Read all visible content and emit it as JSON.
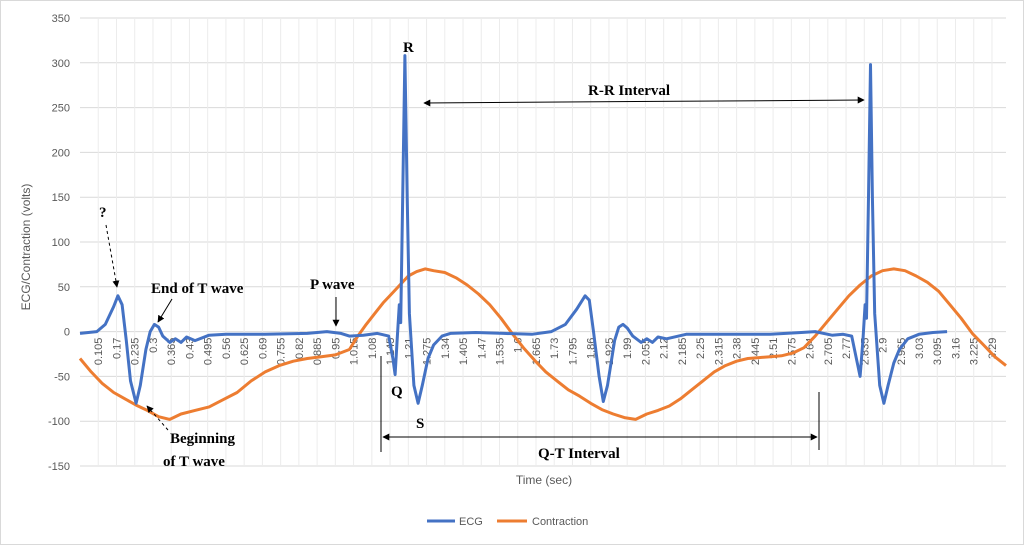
{
  "chart_data": {
    "type": "line",
    "title": "",
    "xlabel": "Time (sec)",
    "ylabel": "ECG/Contraction (volts)",
    "ylim": [
      -150,
      350
    ],
    "xlim": [
      0.04,
      3.34
    ],
    "y_ticks": [
      -150,
      -100,
      -50,
      0,
      50,
      100,
      150,
      200,
      250,
      300,
      350
    ],
    "x_tick_labels": [
      "0.105",
      "0.17",
      "0.235",
      "0.3",
      "0.365",
      "0.43",
      "0.495",
      "0.56",
      "0.625",
      "0.69",
      "0.755",
      "0.82",
      "0.885",
      "0.95",
      "1.015",
      "1.08",
      "1.145",
      "1.21",
      "1.275",
      "1.34",
      "1.405",
      "1.47",
      "1.535",
      "1.6",
      "1.665",
      "1.73",
      "1.795",
      "1.86",
      "1.925",
      "1.99",
      "2.055",
      "2.12",
      "2.185",
      "2.25",
      "2.315",
      "2.38",
      "2.445",
      "2.51",
      "2.575",
      "2.64",
      "2.705",
      "2.77",
      "2.835",
      "2.9",
      "2.965",
      "3.03",
      "3.095",
      "3.16",
      "3.225",
      "3.29"
    ],
    "grid": true,
    "legend_position": "bottom",
    "colors": {
      "ecg": "#4472C4",
      "contraction": "#ED7D31"
    },
    "series": [
      {
        "name": "ECG",
        "points": [
          [
            0.04,
            -2
          ],
          [
            0.1,
            0
          ],
          [
            0.13,
            8
          ],
          [
            0.16,
            28
          ],
          [
            0.175,
            40
          ],
          [
            0.19,
            30
          ],
          [
            0.205,
            -10
          ],
          [
            0.22,
            -55
          ],
          [
            0.24,
            -80
          ],
          [
            0.255,
            -60
          ],
          [
            0.275,
            -20
          ],
          [
            0.29,
            0
          ],
          [
            0.305,
            8
          ],
          [
            0.32,
            5
          ],
          [
            0.335,
            -5
          ],
          [
            0.36,
            -12
          ],
          [
            0.38,
            -8
          ],
          [
            0.4,
            -12
          ],
          [
            0.42,
            -6
          ],
          [
            0.45,
            -10
          ],
          [
            0.5,
            -4
          ],
          [
            0.56,
            -3
          ],
          [
            0.7,
            -3
          ],
          [
            0.85,
            -2
          ],
          [
            0.92,
            0
          ],
          [
            0.97,
            -2
          ],
          [
            1.0,
            -5
          ],
          [
            1.05,
            -4
          ],
          [
            1.1,
            -2
          ],
          [
            1.14,
            -5
          ],
          [
            1.155,
            -30
          ],
          [
            1.163,
            -48
          ],
          [
            1.17,
            -10
          ],
          [
            1.178,
            30
          ],
          [
            1.183,
            10
          ],
          [
            1.19,
            150
          ],
          [
            1.198,
            308
          ],
          [
            1.206,
            150
          ],
          [
            1.214,
            20
          ],
          [
            1.23,
            -60
          ],
          [
            1.245,
            -80
          ],
          [
            1.26,
            -60
          ],
          [
            1.28,
            -30
          ],
          [
            1.3,
            -15
          ],
          [
            1.33,
            -5
          ],
          [
            1.36,
            -2
          ],
          [
            1.45,
            -1
          ],
          [
            1.55,
            -2
          ],
          [
            1.65,
            -3
          ],
          [
            1.72,
            0
          ],
          [
            1.77,
            8
          ],
          [
            1.81,
            25
          ],
          [
            1.84,
            40
          ],
          [
            1.855,
            35
          ],
          [
            1.87,
            0
          ],
          [
            1.89,
            -50
          ],
          [
            1.905,
            -78
          ],
          [
            1.92,
            -60
          ],
          [
            1.945,
            -10
          ],
          [
            1.96,
            5
          ],
          [
            1.975,
            8
          ],
          [
            1.99,
            4
          ],
          [
            2.01,
            -5
          ],
          [
            2.04,
            -12
          ],
          [
            2.06,
            -8
          ],
          [
            2.08,
            -12
          ],
          [
            2.1,
            -6
          ],
          [
            2.13,
            -8
          ],
          [
            2.2,
            -3
          ],
          [
            2.35,
            -3
          ],
          [
            2.5,
            -3
          ],
          [
            2.61,
            -1
          ],
          [
            2.66,
            0
          ],
          [
            2.72,
            -4
          ],
          [
            2.76,
            -3
          ],
          [
            2.79,
            -5
          ],
          [
            2.81,
            -35
          ],
          [
            2.82,
            -50
          ],
          [
            2.83,
            -10
          ],
          [
            2.838,
            30
          ],
          [
            2.843,
            15
          ],
          [
            2.85,
            150
          ],
          [
            2.857,
            298
          ],
          [
            2.864,
            150
          ],
          [
            2.872,
            20
          ],
          [
            2.89,
            -60
          ],
          [
            2.905,
            -80
          ],
          [
            2.92,
            -60
          ],
          [
            2.94,
            -35
          ],
          [
            2.96,
            -20
          ],
          [
            2.99,
            -8
          ],
          [
            3.03,
            -3
          ],
          [
            3.08,
            -1
          ],
          [
            3.13,
            0
          ]
        ]
      },
      {
        "name": "Contraction",
        "points": [
          [
            0.04,
            -30
          ],
          [
            0.08,
            -45
          ],
          [
            0.12,
            -58
          ],
          [
            0.16,
            -68
          ],
          [
            0.2,
            -75
          ],
          [
            0.24,
            -82
          ],
          [
            0.28,
            -88
          ],
          [
            0.32,
            -95
          ],
          [
            0.36,
            -98
          ],
          [
            0.4,
            -92
          ],
          [
            0.45,
            -88
          ],
          [
            0.5,
            -84
          ],
          [
            0.55,
            -76
          ],
          [
            0.6,
            -68
          ],
          [
            0.65,
            -55
          ],
          [
            0.7,
            -45
          ],
          [
            0.75,
            -38
          ],
          [
            0.8,
            -33
          ],
          [
            0.85,
            -30
          ],
          [
            0.9,
            -28
          ],
          [
            0.95,
            -26
          ],
          [
            1.0,
            -20
          ],
          [
            1.03,
            -5
          ],
          [
            1.06,
            8
          ],
          [
            1.09,
            20
          ],
          [
            1.12,
            32
          ],
          [
            1.15,
            42
          ],
          [
            1.18,
            52
          ],
          [
            1.21,
            62
          ],
          [
            1.24,
            67
          ],
          [
            1.27,
            70
          ],
          [
            1.3,
            68
          ],
          [
            1.34,
            66
          ],
          [
            1.38,
            60
          ],
          [
            1.42,
            52
          ],
          [
            1.46,
            42
          ],
          [
            1.5,
            30
          ],
          [
            1.54,
            15
          ],
          [
            1.58,
            -2
          ],
          [
            1.62,
            -18
          ],
          [
            1.66,
            -32
          ],
          [
            1.7,
            -45
          ],
          [
            1.74,
            -55
          ],
          [
            1.78,
            -65
          ],
          [
            1.82,
            -72
          ],
          [
            1.86,
            -80
          ],
          [
            1.9,
            -87
          ],
          [
            1.94,
            -92
          ],
          [
            1.98,
            -96
          ],
          [
            2.02,
            -98
          ],
          [
            2.06,
            -92
          ],
          [
            2.1,
            -88
          ],
          [
            2.14,
            -83
          ],
          [
            2.18,
            -75
          ],
          [
            2.22,
            -65
          ],
          [
            2.26,
            -55
          ],
          [
            2.3,
            -45
          ],
          [
            2.34,
            -38
          ],
          [
            2.38,
            -33
          ],
          [
            2.42,
            -30
          ],
          [
            2.46,
            -29
          ],
          [
            2.5,
            -28
          ],
          [
            2.54,
            -27
          ],
          [
            2.58,
            -24
          ],
          [
            2.62,
            -18
          ],
          [
            2.66,
            -5
          ],
          [
            2.7,
            10
          ],
          [
            2.74,
            25
          ],
          [
            2.78,
            40
          ],
          [
            2.82,
            52
          ],
          [
            2.86,
            62
          ],
          [
            2.9,
            68
          ],
          [
            2.94,
            70
          ],
          [
            2.98,
            68
          ],
          [
            3.02,
            62
          ],
          [
            3.06,
            55
          ],
          [
            3.1,
            45
          ],
          [
            3.14,
            30
          ],
          [
            3.18,
            15
          ],
          [
            3.22,
            -2
          ],
          [
            3.26,
            -15
          ],
          [
            3.3,
            -28
          ],
          [
            3.34,
            -38
          ]
        ]
      }
    ],
    "annotations": {
      "question": "?",
      "end_t": "End of T wave",
      "p_wave": "P wave",
      "r": "R",
      "q": "Q",
      "s": "S",
      "rr": "R-R Interval",
      "qt": "Q-T Interval",
      "beg_t_line1": "Beginning",
      "beg_t_line2": "of T wave"
    }
  }
}
